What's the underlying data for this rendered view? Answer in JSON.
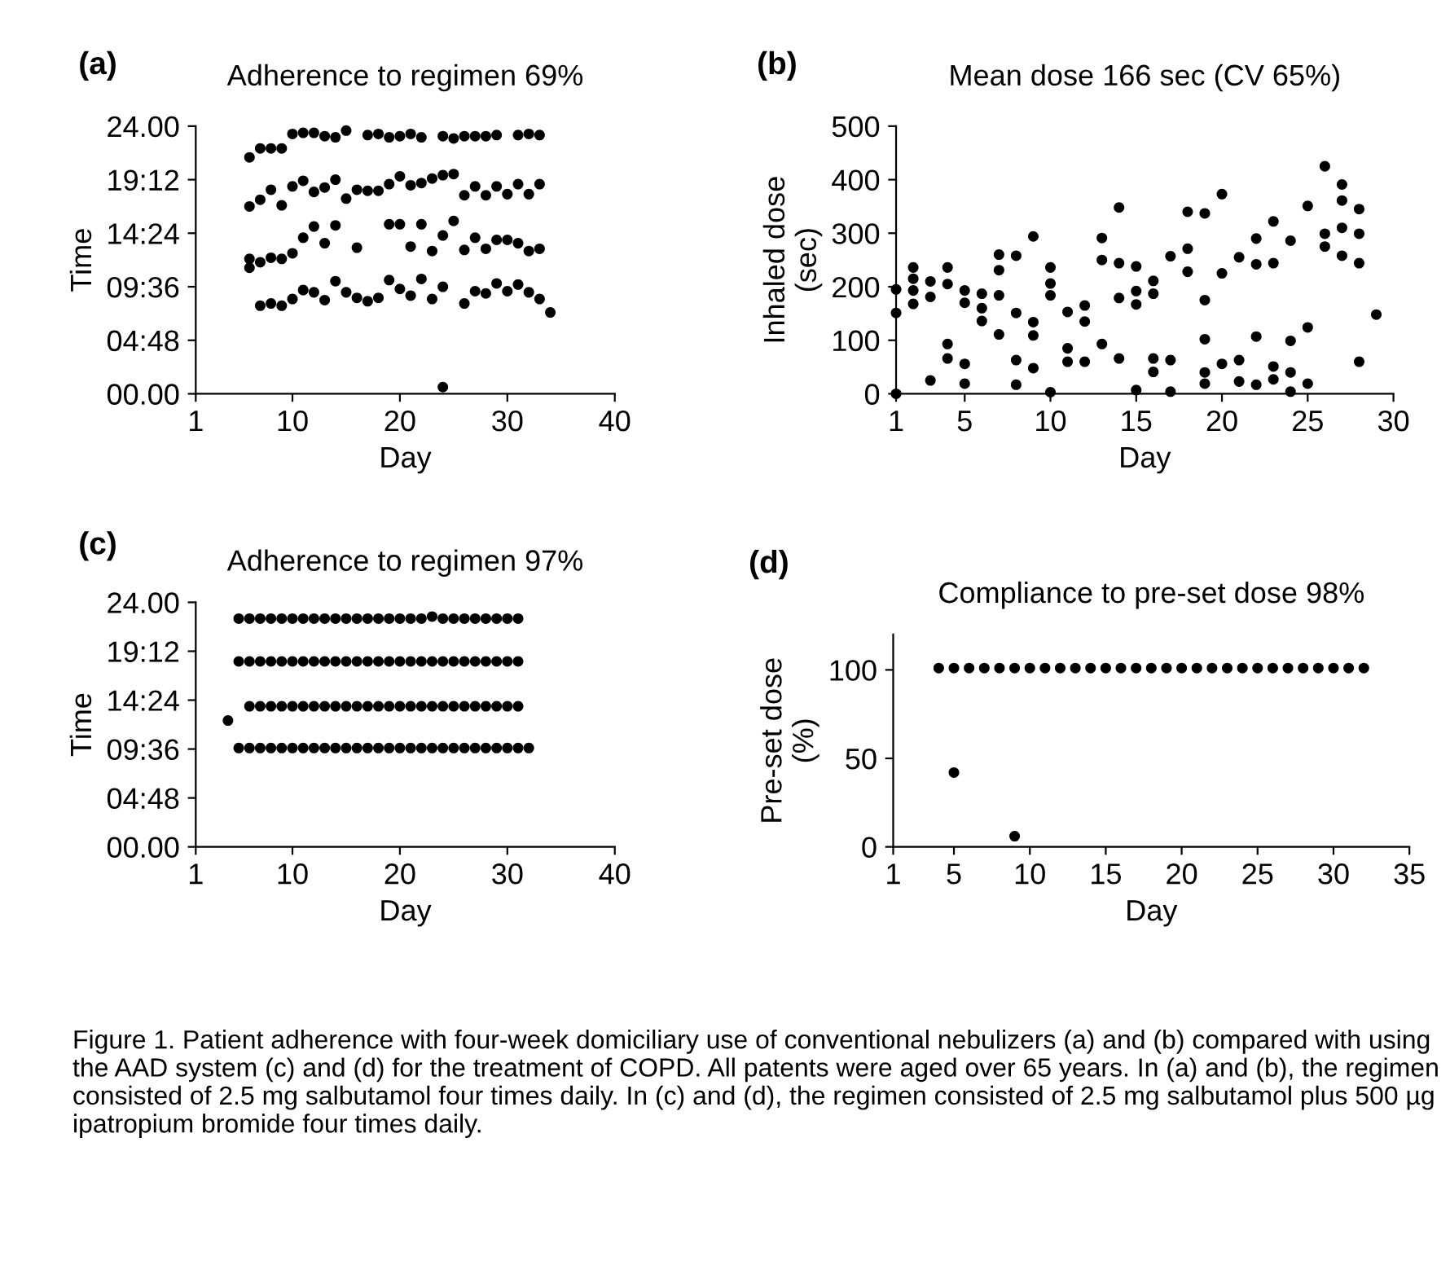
{
  "chart_data": [
    {
      "type": "scatter",
      "title": "Adherence to regimen 69%",
      "annotations": [
        "(a)"
      ],
      "xlabel": "Day",
      "ylabel": "Time",
      "xlim": [
        1,
        40
      ],
      "xticks": [
        1,
        10,
        20,
        30,
        40
      ],
      "ylim": [
        0,
        24
      ],
      "yticks": [
        {
          "value": 0,
          "label": "00.00"
        },
        {
          "value": 4.8,
          "label": "04:48"
        },
        {
          "value": 9.6,
          "label": "09:36"
        },
        {
          "value": 14.4,
          "label": "14:24"
        },
        {
          "value": 19.2,
          "label": "19:12"
        },
        {
          "value": 24,
          "label": "24.00"
        }
      ],
      "marker": "circle",
      "grid": false,
      "series": [
        {
          "color": "#000000",
          "x": [
            6,
            7,
            8,
            9,
            10,
            11,
            12,
            13,
            14,
            15,
            17,
            18,
            19,
            20,
            21,
            22,
            24,
            25,
            26,
            27,
            28,
            29,
            31,
            32,
            33,
            6,
            7,
            8,
            9,
            10,
            11,
            12,
            13,
            14,
            15,
            16,
            17,
            18,
            19,
            20,
            21,
            22,
            23,
            24,
            25,
            26,
            27,
            28,
            29,
            30,
            31,
            32,
            33,
            6,
            6,
            7,
            8,
            9,
            10,
            11,
            12,
            13,
            14,
            16,
            19,
            20,
            21,
            22,
            23,
            24,
            25,
            26,
            27,
            28,
            29,
            30,
            31,
            32,
            33,
            7,
            8,
            9,
            10,
            11,
            12,
            13,
            14,
            15,
            16,
            17,
            18,
            19,
            20,
            21,
            22,
            23,
            24,
            26,
            27,
            28,
            29,
            30,
            31,
            32,
            33,
            34,
            24
          ],
          "values": [
            21.2,
            22.0,
            22.0,
            22.0,
            23.3,
            23.4,
            23.4,
            23.1,
            23.0,
            23.6,
            23.2,
            23.3,
            23.0,
            23.1,
            23.3,
            23.0,
            23.1,
            22.9,
            23.1,
            23.1,
            23.1,
            23.2,
            23.2,
            23.3,
            23.2,
            16.8,
            17.4,
            18.3,
            16.9,
            18.6,
            19.1,
            18.1,
            18.5,
            19.2,
            17.5,
            18.3,
            18.2,
            18.2,
            18.8,
            19.5,
            18.7,
            18.9,
            19.3,
            19.6,
            19.7,
            17.8,
            18.6,
            17.8,
            18.6,
            17.9,
            18.8,
            17.9,
            18.8,
            12.1,
            11.3,
            11.8,
            12.2,
            12.1,
            12.6,
            14.0,
            15.0,
            13.5,
            15.1,
            13.1,
            15.2,
            15.2,
            13.2,
            15.2,
            12.8,
            14.2,
            15.5,
            12.9,
            14.0,
            13.0,
            13.8,
            13.8,
            13.5,
            12.8,
            13.0,
            7.9,
            8.1,
            7.9,
            8.5,
            9.3,
            9.1,
            8.4,
            10.1,
            9.1,
            8.6,
            8.3,
            8.6,
            10.2,
            9.4,
            8.8,
            10.3,
            8.5,
            9.6,
            8.1,
            9.2,
            9.0,
            9.9,
            9.2,
            9.8,
            9.1,
            8.5,
            7.3,
            0.6
          ]
        }
      ]
    },
    {
      "type": "scatter",
      "title": "Mean dose 166 sec (CV 65%)",
      "annotations": [
        "(b)"
      ],
      "xlabel": "Day",
      "ylabel": "Inhaled dose\n(sec)",
      "xlim": [
        1,
        30
      ],
      "xticks": [
        1,
        5,
        10,
        15,
        20,
        25,
        30
      ],
      "ylim": [
        0,
        500
      ],
      "yticks": [
        0,
        100,
        200,
        300,
        400,
        500
      ],
      "marker": "circle",
      "grid": false,
      "series": [
        {
          "color": "#000000",
          "x": [
            1,
            1,
            1,
            2,
            2,
            2,
            2,
            3,
            3,
            3,
            4,
            4,
            4,
            4,
            5,
            5,
            5,
            5,
            6,
            6,
            6,
            7,
            7,
            7,
            7,
            8,
            8,
            8,
            8,
            9,
            9,
            9,
            9,
            10,
            10,
            10,
            10,
            11,
            11,
            11,
            12,
            12,
            12,
            13,
            13,
            13,
            14,
            14,
            14,
            14,
            15,
            15,
            15,
            15,
            16,
            16,
            16,
            16,
            17,
            17,
            17,
            18,
            18,
            18,
            19,
            19,
            19,
            19,
            19,
            20,
            20,
            20,
            21,
            21,
            21,
            22,
            22,
            22,
            22,
            23,
            23,
            23,
            23,
            24,
            24,
            24,
            24,
            25,
            25,
            25,
            26,
            26,
            26,
            27,
            27,
            27,
            27,
            28,
            28,
            28,
            28,
            29
          ],
          "values": [
            195,
            151,
            0,
            236,
            215,
            193,
            168,
            210,
            181,
            25,
            236,
            205,
            93,
            66,
            193,
            170,
            56,
            19,
            187,
            160,
            136,
            260,
            231,
            184,
            111,
            258,
            151,
            63,
            17,
            294,
            134,
            109,
            48,
            236,
            206,
            184,
            3,
            153,
            85,
            60,
            165,
            135,
            60,
            291,
            250,
            93,
            348,
            244,
            179,
            66,
            238,
            192,
            167,
            7,
            211,
            187,
            66,
            41,
            257,
            63,
            4,
            340,
            271,
            228,
            337,
            175,
            102,
            40,
            19,
            373,
            225,
            56,
            255,
            63,
            23,
            290,
            242,
            107,
            17,
            322,
            244,
            51,
            27,
            286,
            99,
            40,
            4,
            351,
            124,
            19,
            425,
            299,
            275,
            391,
            361,
            310,
            258,
            345,
            299,
            244,
            60,
            148
          ]
        }
      ]
    },
    {
      "type": "scatter",
      "title": "Adherence to regimen 97%",
      "annotations": [
        "(c)"
      ],
      "xlabel": "Day",
      "ylabel": "Time",
      "xlim": [
        1,
        40
      ],
      "xticks": [
        1,
        10,
        20,
        30,
        40
      ],
      "ylim": [
        0,
        24
      ],
      "yticks": [
        {
          "value": 0,
          "label": "00.00"
        },
        {
          "value": 4.8,
          "label": "04:48"
        },
        {
          "value": 9.6,
          "label": "09:36"
        },
        {
          "value": 14.4,
          "label": "14:24"
        },
        {
          "value": 19.2,
          "label": "19:12"
        },
        {
          "value": 24,
          "label": "24.00"
        }
      ],
      "marker": "circle",
      "grid": false,
      "series": [
        {
          "color": "#000000",
          "x": [
            5,
            6,
            7,
            8,
            9,
            10,
            11,
            12,
            13,
            14,
            15,
            16,
            17,
            18,
            19,
            20,
            21,
            22,
            23,
            24,
            25,
            26,
            27,
            28,
            29,
            30,
            31,
            5,
            6,
            7,
            8,
            9,
            10,
            11,
            12,
            13,
            14,
            15,
            16,
            17,
            18,
            19,
            20,
            21,
            22,
            23,
            24,
            25,
            26,
            27,
            28,
            29,
            30,
            31,
            4,
            6,
            7,
            8,
            9,
            10,
            11,
            12,
            13,
            14,
            15,
            16,
            17,
            18,
            19,
            20,
            21,
            22,
            23,
            24,
            25,
            26,
            27,
            28,
            29,
            30,
            31,
            5,
            6,
            7,
            8,
            9,
            10,
            11,
            12,
            13,
            14,
            15,
            16,
            17,
            18,
            19,
            20,
            21,
            22,
            23,
            24,
            25,
            26,
            27,
            28,
            29,
            30,
            31,
            32
          ],
          "values": [
            22.4,
            22.4,
            22.4,
            22.4,
            22.4,
            22.4,
            22.4,
            22.4,
            22.4,
            22.4,
            22.4,
            22.4,
            22.4,
            22.4,
            22.4,
            22.4,
            22.4,
            22.4,
            22.6,
            22.4,
            22.4,
            22.4,
            22.4,
            22.4,
            22.4,
            22.4,
            22.4,
            18.2,
            18.2,
            18.2,
            18.2,
            18.2,
            18.2,
            18.2,
            18.2,
            18.2,
            18.2,
            18.2,
            18.2,
            18.2,
            18.2,
            18.2,
            18.2,
            18.2,
            18.2,
            18.2,
            18.2,
            18.2,
            18.2,
            18.2,
            18.2,
            18.2,
            18.2,
            18.2,
            12.4,
            13.8,
            13.8,
            13.8,
            13.8,
            13.8,
            13.8,
            13.8,
            13.8,
            13.8,
            13.8,
            13.8,
            13.8,
            13.8,
            13.8,
            13.8,
            13.8,
            13.8,
            13.8,
            13.8,
            13.8,
            13.8,
            13.8,
            13.8,
            13.8,
            13.8,
            13.8,
            9.7,
            9.7,
            9.7,
            9.7,
            9.7,
            9.7,
            9.7,
            9.7,
            9.7,
            9.7,
            9.7,
            9.7,
            9.7,
            9.7,
            9.7,
            9.7,
            9.7,
            9.7,
            9.7,
            9.7,
            9.7,
            9.7,
            9.7,
            9.7,
            9.7,
            9.7,
            9.7,
            9.7
          ]
        }
      ]
    },
    {
      "type": "scatter",
      "title": "Compliance to pre-set dose 98%",
      "annotations": [
        "(d)",
        "Figure 1. Patient adherence with four-week domiciliary use of conventional nebulizers (a) and (b) compared with using the AAD system (c) and (d) for the treatment of COPD. All patents were aged over 65 years. In (a) and (b), the regimen consisted of 2.5 mg salbutamol four times daily. In (c) and (d), the regimen consisted of 2.5 mg salbutamol plus 500 µg ipatropium bromide four times daily."
      ],
      "xlabel": "Day",
      "ylabel": "Pre-set dose\n(%)",
      "xlim": [
        1,
        35
      ],
      "xticks": [
        1,
        5,
        10,
        15,
        20,
        25,
        30,
        35
      ],
      "ylim": [
        0,
        120
      ],
      "yticks": [
        0,
        50,
        100
      ],
      "marker": "circle",
      "grid": false,
      "series": [
        {
          "color": "#000000",
          "x": [
            4,
            5,
            6,
            7,
            8,
            9,
            10,
            11,
            12,
            13,
            14,
            15,
            16,
            17,
            18,
            19,
            20,
            21,
            22,
            23,
            24,
            25,
            26,
            27,
            28,
            29,
            30,
            31,
            32,
            5,
            9
          ],
          "values": [
            101,
            101,
            101,
            101,
            101,
            101,
            101,
            101,
            101,
            101,
            101,
            101,
            101,
            101,
            101,
            101,
            101,
            101,
            101,
            101,
            101,
            101,
            101,
            101,
            101,
            101,
            101,
            101,
            101,
            42,
            6
          ]
        }
      ]
    }
  ]
}
